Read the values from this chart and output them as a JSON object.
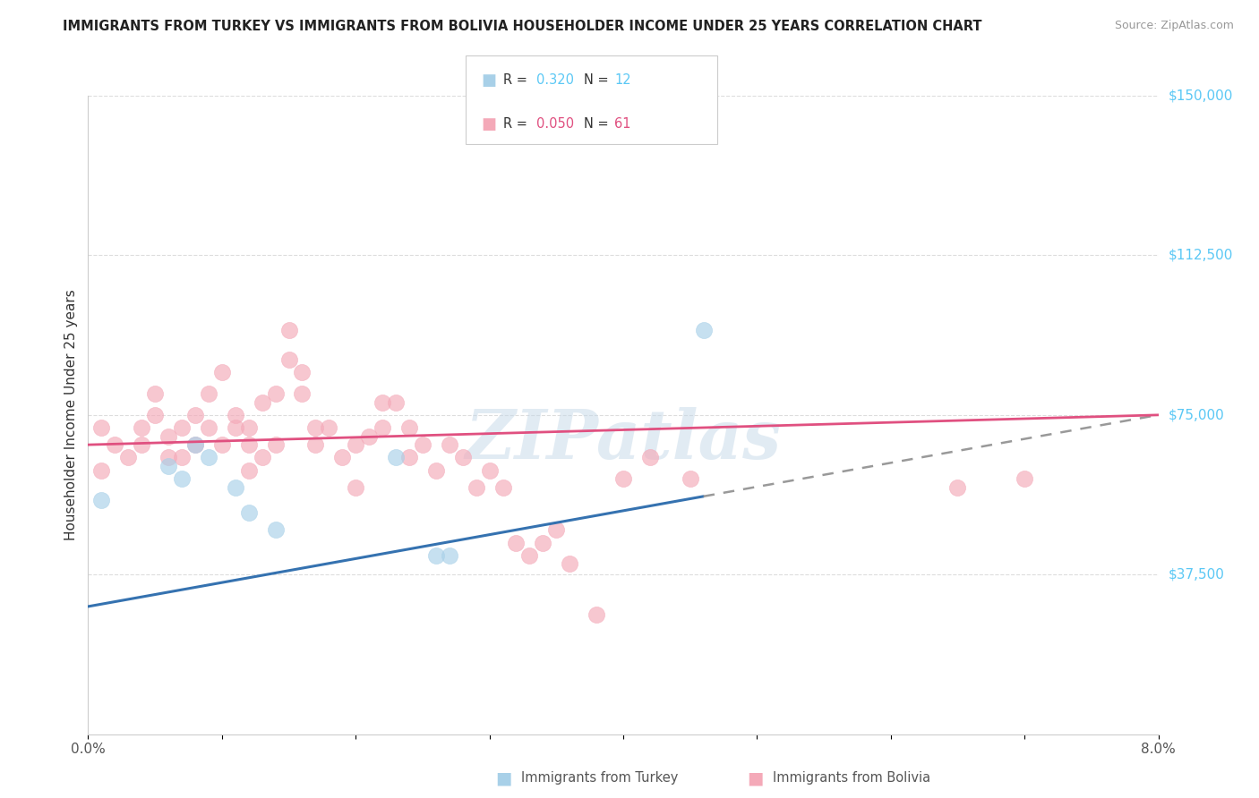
{
  "title": "IMMIGRANTS FROM TURKEY VS IMMIGRANTS FROM BOLIVIA HOUSEHOLDER INCOME UNDER 25 YEARS CORRELATION CHART",
  "source": "Source: ZipAtlas.com",
  "ylabel": "Householder Income Under 25 years",
  "xlim": [
    0.0,
    0.08
  ],
  "ylim": [
    0,
    150000
  ],
  "xticks": [
    0.0,
    0.01,
    0.02,
    0.03,
    0.04,
    0.05,
    0.06,
    0.07,
    0.08
  ],
  "xticklabels": [
    "0.0%",
    "",
    "",
    "",
    "",
    "",
    "",
    "",
    "8.0%"
  ],
  "ytick_right_labels": [
    "$150,000",
    "$112,500",
    "$75,000",
    "$37,500"
  ],
  "ytick_right_values": [
    150000,
    112500,
    75000,
    37500
  ],
  "grid_values": [
    150000,
    112500,
    75000,
    37500
  ],
  "turkey_color": "#a8d0e8",
  "bolivia_color": "#f4a9b8",
  "turkey_line_color": "#3572b0",
  "bolivia_line_color": "#e05080",
  "right_label_color": "#5bc8f5",
  "watermark": "ZIPatlas",
  "watermark_color": "#c5d8e8",
  "turkey_x": [
    0.001,
    0.006,
    0.007,
    0.008,
    0.009,
    0.011,
    0.012,
    0.014,
    0.023,
    0.026,
    0.027,
    0.046
  ],
  "turkey_y": [
    55000,
    63000,
    60000,
    68000,
    65000,
    58000,
    52000,
    48000,
    65000,
    42000,
    42000,
    95000
  ],
  "bolivia_x": [
    0.001,
    0.001,
    0.002,
    0.003,
    0.004,
    0.004,
    0.005,
    0.005,
    0.006,
    0.006,
    0.007,
    0.007,
    0.008,
    0.008,
    0.009,
    0.009,
    0.01,
    0.01,
    0.011,
    0.011,
    0.012,
    0.012,
    0.012,
    0.013,
    0.013,
    0.014,
    0.014,
    0.015,
    0.015,
    0.016,
    0.016,
    0.017,
    0.017,
    0.018,
    0.019,
    0.02,
    0.02,
    0.021,
    0.022,
    0.022,
    0.023,
    0.024,
    0.024,
    0.025,
    0.026,
    0.027,
    0.028,
    0.029,
    0.03,
    0.031,
    0.032,
    0.033,
    0.034,
    0.035,
    0.036,
    0.038,
    0.04,
    0.042,
    0.045,
    0.065,
    0.07
  ],
  "bolivia_y": [
    62000,
    72000,
    68000,
    65000,
    72000,
    68000,
    75000,
    80000,
    65000,
    70000,
    65000,
    72000,
    68000,
    75000,
    72000,
    80000,
    85000,
    68000,
    75000,
    72000,
    68000,
    62000,
    72000,
    78000,
    65000,
    68000,
    80000,
    88000,
    95000,
    80000,
    85000,
    72000,
    68000,
    72000,
    65000,
    58000,
    68000,
    70000,
    78000,
    72000,
    78000,
    65000,
    72000,
    68000,
    62000,
    68000,
    65000,
    58000,
    62000,
    58000,
    45000,
    42000,
    45000,
    48000,
    40000,
    28000,
    60000,
    65000,
    60000,
    58000,
    60000
  ]
}
